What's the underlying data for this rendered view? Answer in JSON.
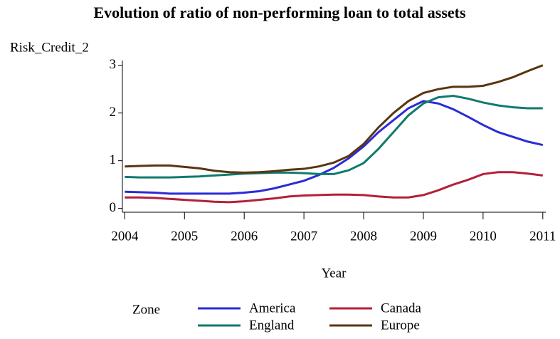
{
  "chart_data": {
    "type": "line",
    "title": "Evolution of ratio of non-performing loan to total assets",
    "ylabel": "Risk_Credit_2",
    "xlabel": "Year",
    "legend_title": "Zone",
    "x": [
      2004,
      2004.25,
      2004.5,
      2004.75,
      2005,
      2005.25,
      2005.5,
      2005.75,
      2006,
      2006.25,
      2006.5,
      2006.75,
      2007,
      2007.25,
      2007.5,
      2007.75,
      2008,
      2008.25,
      2008.5,
      2008.75,
      2009,
      2009.25,
      2009.5,
      2009.75,
      2010,
      2010.25,
      2010.5,
      2010.75,
      2011
    ],
    "series": [
      {
        "name": "America",
        "color": "#2b2bd8",
        "values": [
          0.35,
          0.34,
          0.33,
          0.31,
          0.31,
          0.31,
          0.31,
          0.31,
          0.33,
          0.36,
          0.42,
          0.5,
          0.58,
          0.7,
          0.85,
          1.05,
          1.3,
          1.6,
          1.85,
          2.1,
          2.25,
          2.2,
          2.08,
          1.92,
          1.75,
          1.6,
          1.5,
          1.4,
          1.33
        ]
      },
      {
        "name": "Canada",
        "color": "#b3203a",
        "values": [
          0.23,
          0.23,
          0.22,
          0.2,
          0.18,
          0.16,
          0.14,
          0.13,
          0.15,
          0.18,
          0.21,
          0.25,
          0.27,
          0.28,
          0.29,
          0.29,
          0.28,
          0.25,
          0.23,
          0.23,
          0.28,
          0.38,
          0.5,
          0.6,
          0.72,
          0.76,
          0.76,
          0.73,
          0.69
        ]
      },
      {
        "name": "England",
        "color": "#107a6e",
        "values": [
          0.66,
          0.65,
          0.65,
          0.65,
          0.66,
          0.67,
          0.69,
          0.71,
          0.73,
          0.74,
          0.75,
          0.75,
          0.74,
          0.72,
          0.72,
          0.8,
          0.95,
          1.25,
          1.6,
          1.95,
          2.2,
          2.33,
          2.36,
          2.3,
          2.22,
          2.16,
          2.12,
          2.1,
          2.1
        ]
      },
      {
        "name": "Europe",
        "color": "#5a3510",
        "values": [
          0.88,
          0.89,
          0.9,
          0.9,
          0.87,
          0.84,
          0.79,
          0.76,
          0.75,
          0.76,
          0.78,
          0.81,
          0.83,
          0.88,
          0.96,
          1.1,
          1.35,
          1.7,
          2.0,
          2.25,
          2.42,
          2.5,
          2.55,
          2.55,
          2.57,
          2.65,
          2.75,
          2.88,
          3.0
        ]
      }
    ],
    "xlim": [
      2003.96,
      2011.05
    ],
    "xticks": [
      2004,
      2005,
      2006,
      2007,
      2008,
      2009,
      2010,
      2011
    ],
    "ylim": [
      -0.08,
      3.1
    ],
    "yticks": [
      0,
      1,
      2,
      3
    ]
  }
}
